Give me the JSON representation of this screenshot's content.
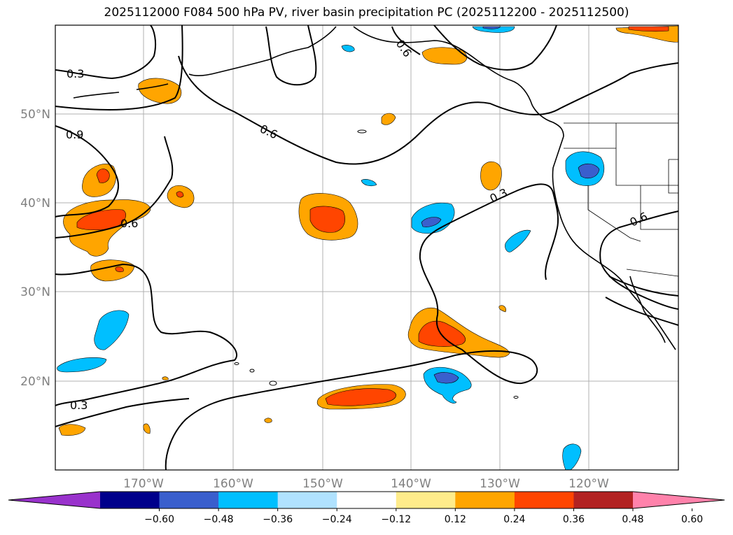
{
  "title": "2025112000 F084 500 hPa PV, river basin precipitation PC (2025112200 - 2025112500)",
  "map": {
    "lon_labels": [
      "170°W",
      "160°W",
      "150°W",
      "140°W",
      "130°W",
      "120°W"
    ],
    "lat_labels": [
      "50°N",
      "40°N",
      "30°N",
      "20°N"
    ]
  },
  "contour_labels": [
    "0.3",
    "0.9",
    "0.6",
    "0.6",
    "0.6",
    "0.3",
    "0.6",
    "0.3"
  ],
  "colorbar": {
    "ticks": [
      "−0.60",
      "−0.48",
      "−0.36",
      "−0.24",
      "−0.12",
      "0.12",
      "0.24",
      "0.36",
      "0.48",
      "0.60"
    ],
    "colors": [
      "#9932cc",
      "#00008b",
      "#3a5fcd",
      "#00bfff",
      "#b0e2ff",
      "#ffffff",
      "#ffec8b",
      "#ffa500",
      "#ff4500",
      "#b22222",
      "#ff82ab"
    ]
  },
  "colors": {
    "pos_low": "#ffa500",
    "pos_mid": "#ff4500",
    "neg_low": "#00bfff",
    "neg_mid": "#3a5fcd",
    "grid": "#b0b0b0"
  }
}
